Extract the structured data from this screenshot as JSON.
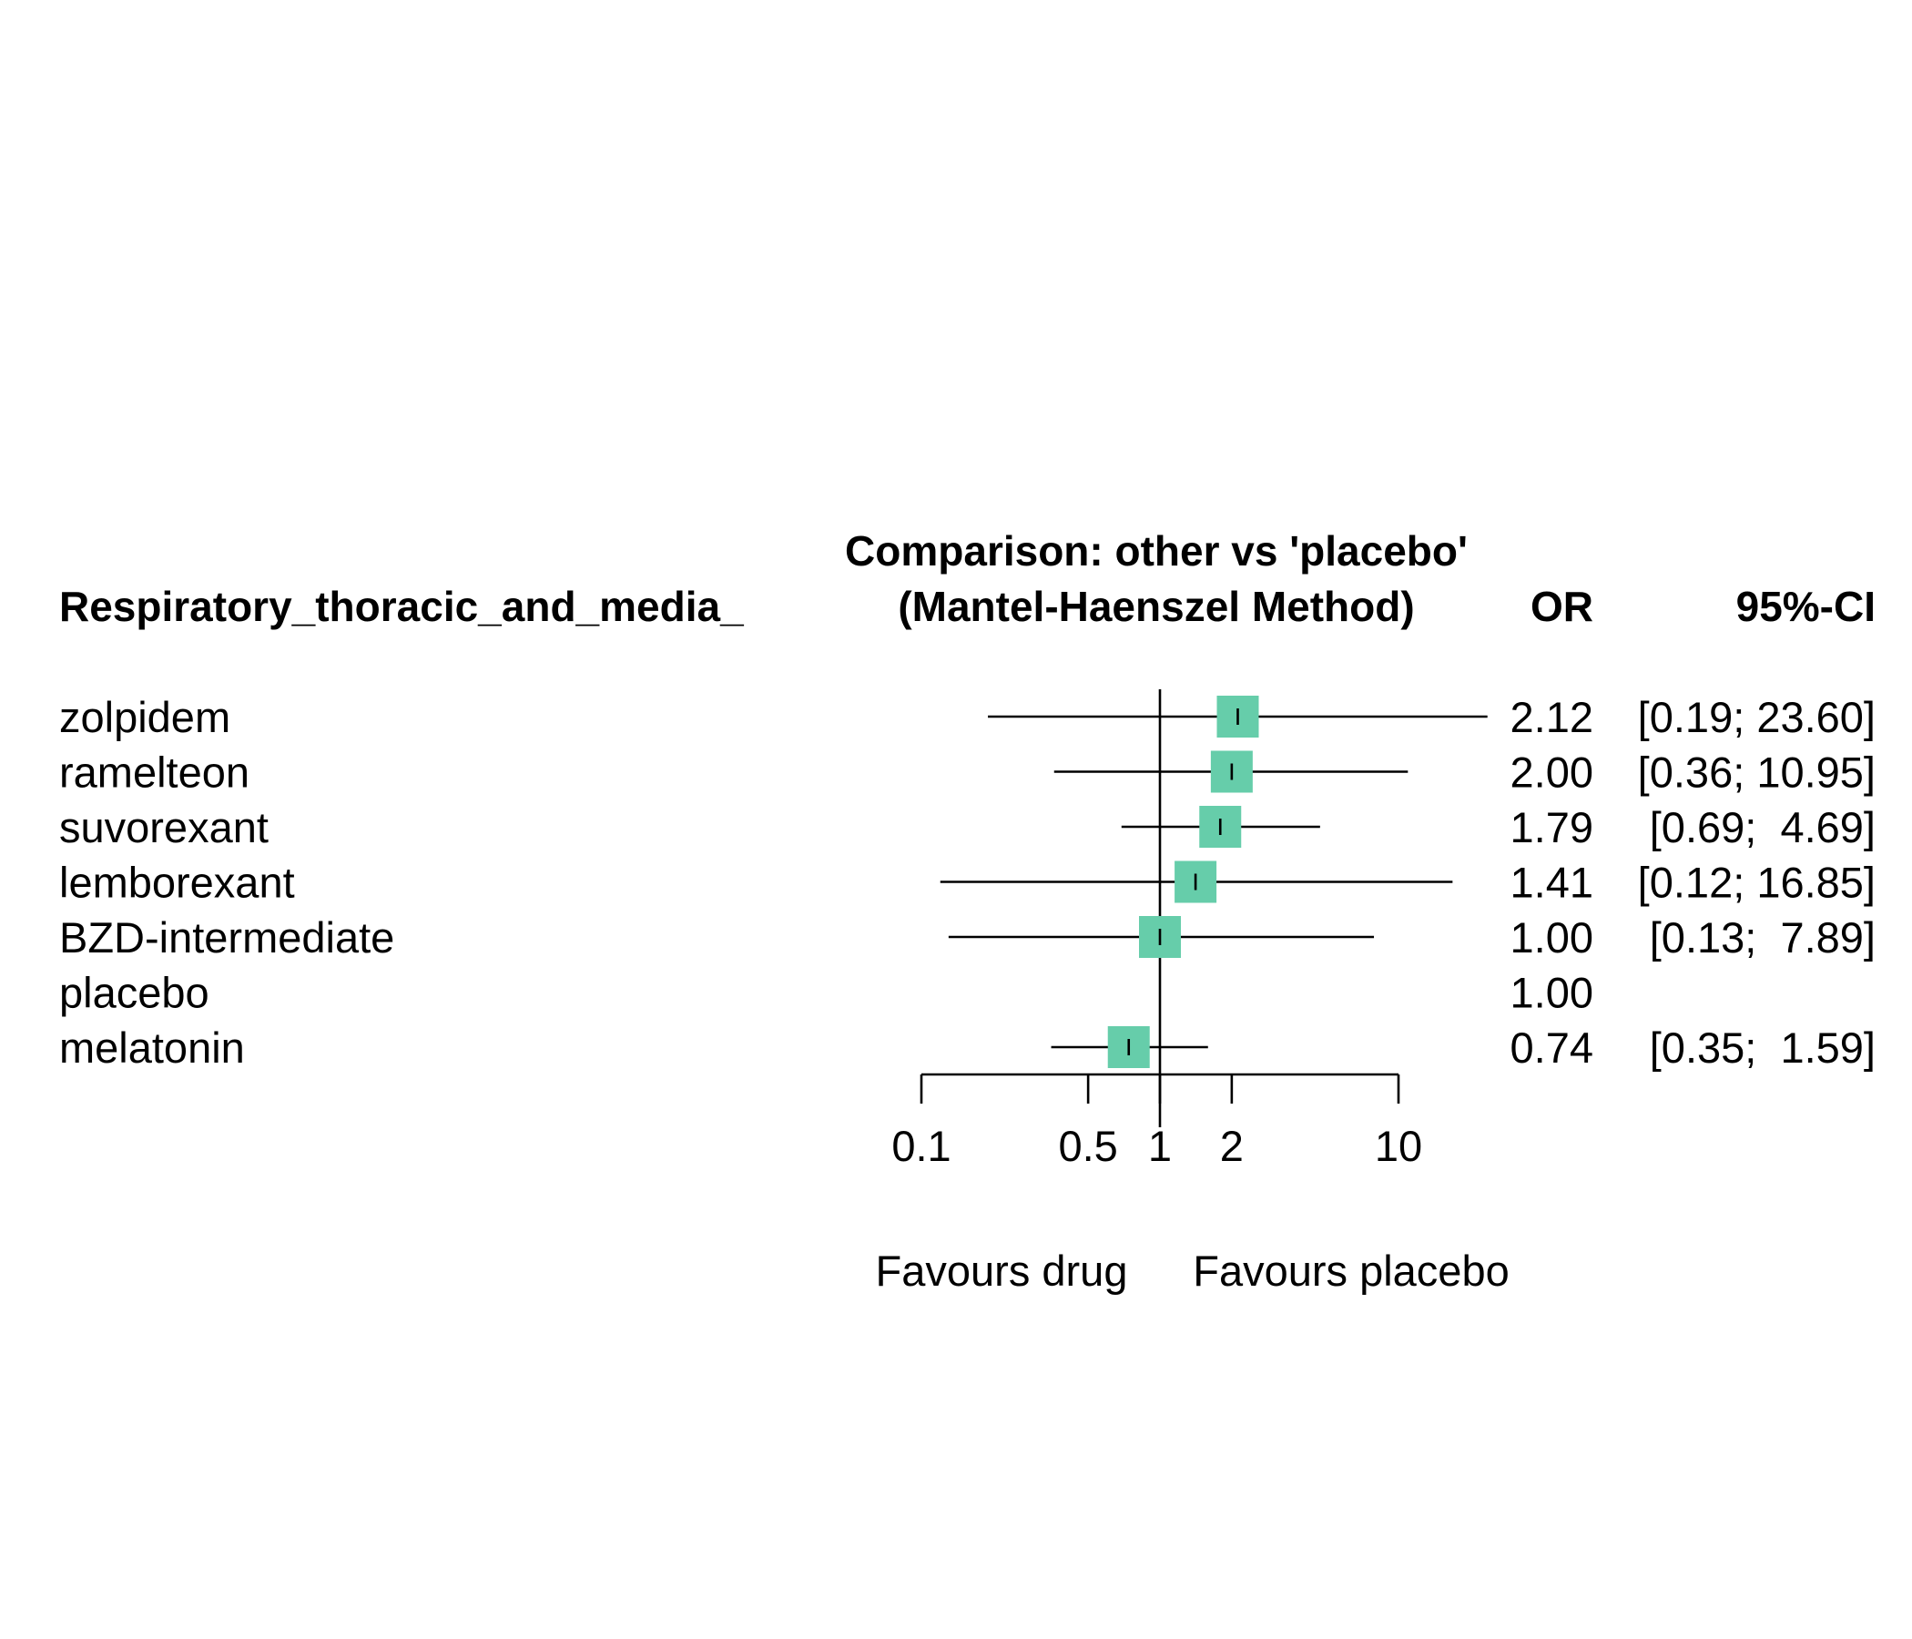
{
  "chart_data": {
    "type": "forest",
    "title": "Comparison: other vs 'placebo'",
    "subtitle": "(Mantel-Haenszel Method)",
    "column_headers": {
      "study": "Respiratory_thoracic_and_media_",
      "estimate": "OR",
      "ci": "95%-CI"
    },
    "x_scale": "log",
    "xlim": [
      0.1,
      10
    ],
    "x_ticks": [
      0.1,
      0.5,
      1,
      2,
      10
    ],
    "x_tick_labels": [
      "0.1",
      "0.5",
      "1",
      "2",
      "10"
    ],
    "reference_line": 1,
    "favours_left": "Favours drug",
    "favours_right": "Favours placebo",
    "marker_color": "#66CDAA",
    "rows": [
      {
        "name": "zolpidem",
        "or": 2.12,
        "lower": 0.19,
        "upper": 23.6,
        "or_text": "2.12",
        "ci_text": "[0.19; 23.60]"
      },
      {
        "name": "ramelteon",
        "or": 2.0,
        "lower": 0.36,
        "upper": 10.95,
        "or_text": "2.00",
        "ci_text": "[0.36; 10.95]"
      },
      {
        "name": "suvorexant",
        "or": 1.79,
        "lower": 0.69,
        "upper": 4.69,
        "or_text": "1.79",
        "ci_text": "[0.69;  4.69]"
      },
      {
        "name": "lemborexant",
        "or": 1.41,
        "lower": 0.12,
        "upper": 16.85,
        "or_text": "1.41",
        "ci_text": "[0.12; 16.85]"
      },
      {
        "name": "BZD-intermediate",
        "or": 1.0,
        "lower": 0.13,
        "upper": 7.89,
        "or_text": "1.00",
        "ci_text": "[0.13;  7.89]"
      },
      {
        "name": "placebo",
        "or": 1.0,
        "lower": null,
        "upper": null,
        "or_text": "1.00",
        "ci_text": ""
      },
      {
        "name": "melatonin",
        "or": 0.74,
        "lower": 0.35,
        "upper": 1.59,
        "or_text": "0.74",
        "ci_text": "[0.35;  1.59]"
      }
    ]
  }
}
